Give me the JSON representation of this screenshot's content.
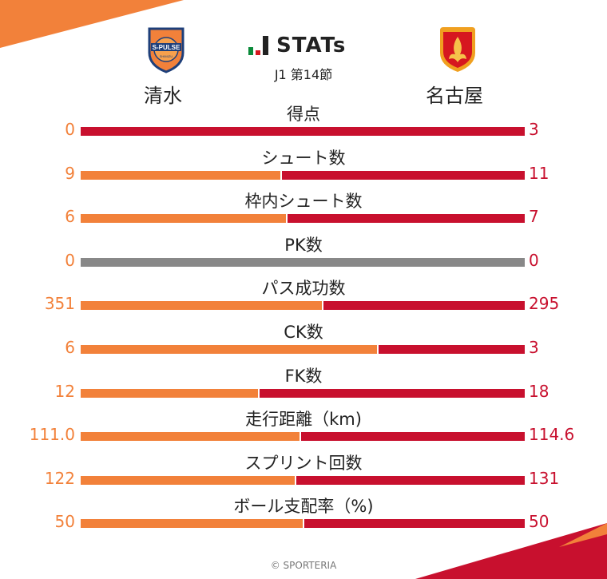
{
  "header": {
    "stats_title": "STATs",
    "round": "J1 第14節",
    "home_team": "清水",
    "away_team": "名古屋",
    "home_crest_text": "S-PULSE",
    "home_crest_sub": "SHIMIZU",
    "home_crest_icon": "s-pulse-crest-icon",
    "away_crest_icon": "grampus-crest-icon"
  },
  "colors": {
    "home": "#f2813a",
    "away": "#c8102e",
    "neutral": "#888888",
    "logo_green": "#0a8a3a",
    "logo_red": "#d6171f"
  },
  "stats": [
    {
      "label": "得点",
      "home": "0",
      "away": "3",
      "home_share": 0.0
    },
    {
      "label": "シュート数",
      "home": "9",
      "away": "11",
      "home_share": 0.45
    },
    {
      "label": "枠内シュート数",
      "home": "6",
      "away": "7",
      "home_share": 0.4615
    },
    {
      "label": "PK数",
      "home": "0",
      "away": "0",
      "home_share": null
    },
    {
      "label": "パス成功数",
      "home": "351",
      "away": "295",
      "home_share": 0.5433
    },
    {
      "label": "CK数",
      "home": "6",
      "away": "3",
      "home_share": 0.6667
    },
    {
      "label": "FK数",
      "home": "12",
      "away": "18",
      "home_share": 0.4
    },
    {
      "label": "走行距離（km)",
      "home": "111.0",
      "away": "114.6",
      "home_share": 0.492
    },
    {
      "label": "スプリント回数",
      "home": "122",
      "away": "131",
      "home_share": 0.4822
    },
    {
      "label": "ボール支配率（%)",
      "home": "50",
      "away": "50",
      "home_share": 0.5
    }
  ],
  "footer": {
    "credit": "© SPORTERIA"
  }
}
